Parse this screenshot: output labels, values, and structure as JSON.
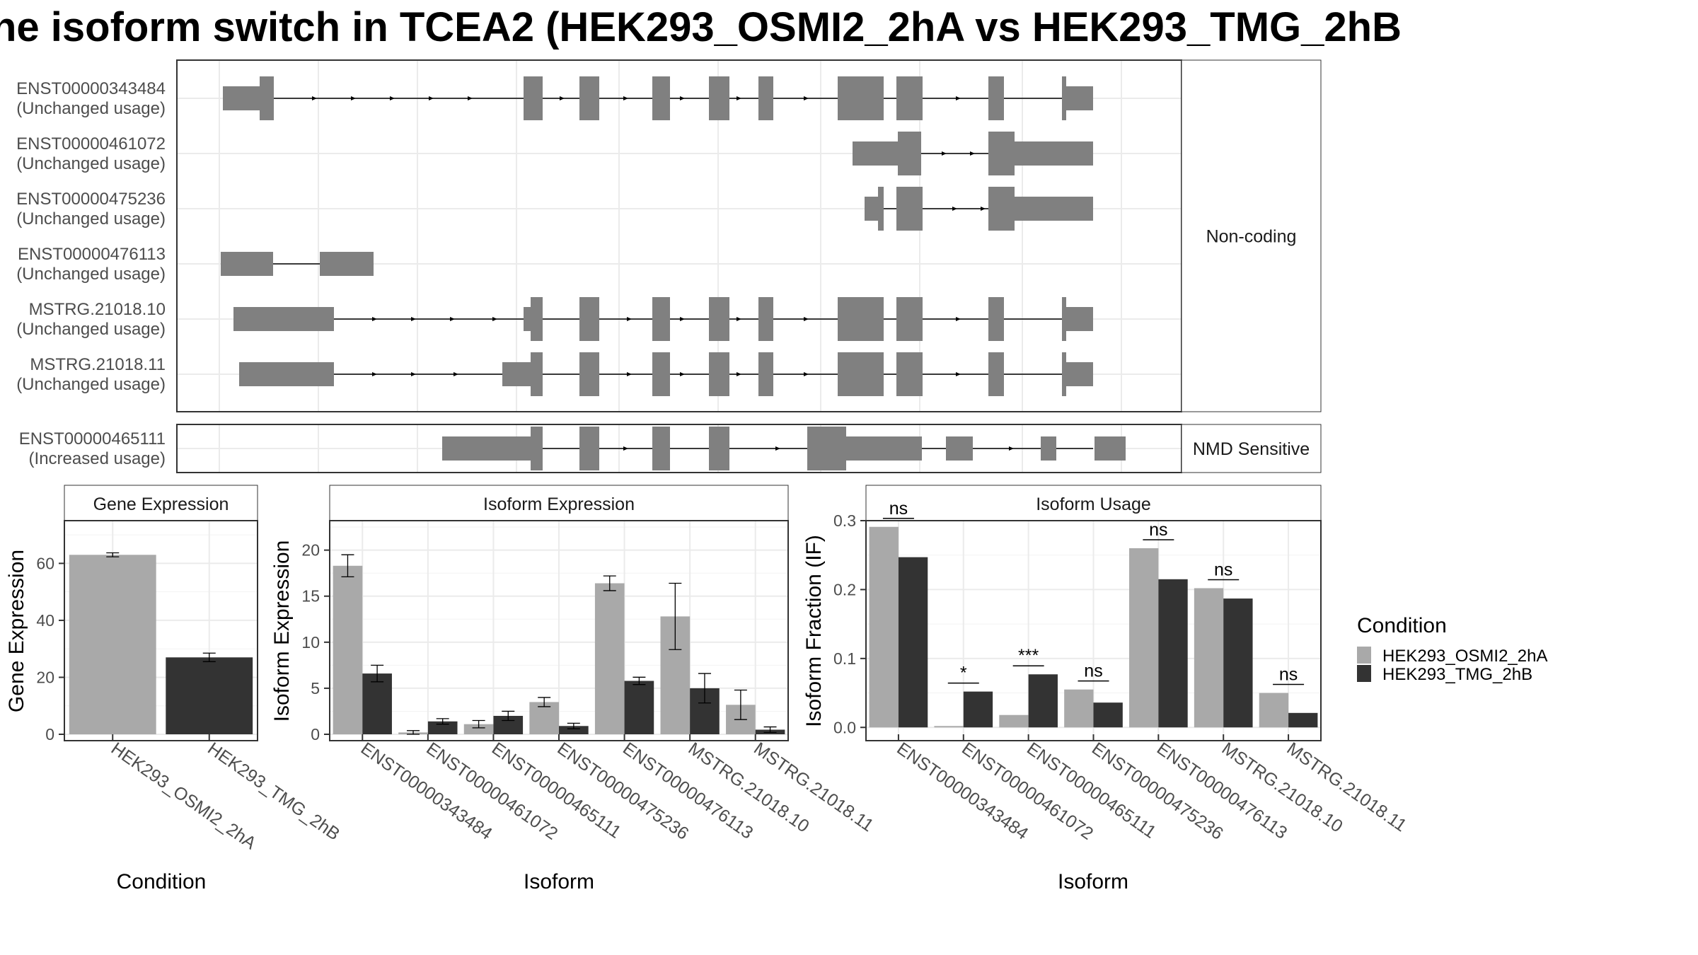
{
  "title": "he isoform switch in TCEA2 (HEK293_OSMI2_2hA vs HEK293_TMG_2hB",
  "colors": {
    "cond1": "#a9a9a9",
    "cond2": "#333333",
    "exon": "#808080",
    "strip": "#ffffff",
    "grid": "#ebebeb"
  },
  "structure": {
    "groups": [
      {
        "label": "Non-coding",
        "rows": [
          {
            "id": "ENST00000343484",
            "status": "(Unchanged usage)",
            "intron": [
              65,
              1295
            ],
            "exons": [
              [
                65,
                117,
                "n"
              ],
              [
                117,
                137,
                "w"
              ],
              [
                490,
                517,
                "w"
              ],
              [
                569,
                597,
                "w"
              ],
              [
                672,
                697,
                "w"
              ],
              [
                752,
                781,
                "w"
              ],
              [
                822,
                843,
                "w"
              ],
              [
                934,
                999,
                "w"
              ],
              [
                1017,
                1054,
                "w"
              ],
              [
                1147,
                1169,
                "w"
              ],
              [
                1251,
                1257,
                "w"
              ],
              [
                1257,
                1295,
                "n"
              ]
            ],
            "arrows": [
              195,
              250,
              305,
              360,
              415,
              545,
              635,
              715,
              795,
              890,
              970,
              1105
            ]
          },
          {
            "id": "ENST00000461072",
            "status": "(Unchanged usage)",
            "intron": [
              955,
              1295
            ],
            "exons": [
              [
                955,
                1019,
                "n"
              ],
              [
                1019,
                1052,
                "w"
              ],
              [
                1147,
                1184,
                "w"
              ],
              [
                1184,
                1295,
                "n"
              ]
            ],
            "arrows": [
              1085,
              1125
            ]
          },
          {
            "id": "ENST00000475236",
            "status": "(Unchanged usage)",
            "intron": [
              972,
              1295
            ],
            "exons": [
              [
                972,
                991,
                "n"
              ],
              [
                991,
                999,
                "w"
              ],
              [
                1017,
                1054,
                "w"
              ],
              [
                1147,
                1184,
                "w"
              ],
              [
                1184,
                1295,
                "n"
              ]
            ],
            "arrows": [
              1100,
              1140
            ]
          },
          {
            "id": "ENST00000476113",
            "status": "(Unchanged usage)",
            "intron": [
              62,
              278
            ],
            "exons": [
              [
                62,
                136,
                "n"
              ],
              [
                202,
                278,
                "n"
              ]
            ],
            "arrows": []
          },
          {
            "id": "MSTRG.21018.10",
            "status": "(Unchanged usage)",
            "intron": [
              80,
              1295
            ],
            "exons": [
              [
                80,
                222,
                "n"
              ],
              [
                490,
                500,
                "n"
              ],
              [
                500,
                517,
                "w"
              ],
              [
                569,
                597,
                "w"
              ],
              [
                672,
                697,
                "w"
              ],
              [
                752,
                781,
                "w"
              ],
              [
                822,
                843,
                "w"
              ],
              [
                934,
                999,
                "w"
              ],
              [
                1017,
                1054,
                "w"
              ],
              [
                1147,
                1169,
                "w"
              ],
              [
                1251,
                1257,
                "w"
              ],
              [
                1257,
                1295,
                "n"
              ]
            ],
            "arrows": [
              280,
              335,
              390,
              450,
              640,
              715,
              795,
              890,
              970,
              1105
            ]
          },
          {
            "id": "MSTRG.21018.11",
            "status": "(Unchanged usage)",
            "intron": [
              88,
              1295
            ],
            "exons": [
              [
                88,
                222,
                "n"
              ],
              [
                460,
                500,
                "n"
              ],
              [
                500,
                517,
                "w"
              ],
              [
                569,
                597,
                "w"
              ],
              [
                672,
                697,
                "w"
              ],
              [
                752,
                781,
                "w"
              ],
              [
                822,
                843,
                "w"
              ],
              [
                934,
                999,
                "w"
              ],
              [
                1017,
                1054,
                "w"
              ],
              [
                1147,
                1169,
                "w"
              ],
              [
                1251,
                1257,
                "w"
              ],
              [
                1257,
                1295,
                "n"
              ]
            ],
            "arrows": [
              280,
              335,
              395,
              640,
              715,
              795,
              890,
              970,
              1105
            ]
          }
        ]
      },
      {
        "label": "NMD Sensitive",
        "rows": [
          {
            "id": "ENST00000465111",
            "status": "(Increased usage)",
            "intron": [
              375,
              1295
            ],
            "exons": [
              [
                375,
                500,
                "n"
              ],
              [
                500,
                517,
                "w"
              ],
              [
                569,
                597,
                "w"
              ],
              [
                672,
                697,
                "w"
              ],
              [
                752,
                781,
                "w"
              ],
              [
                891,
                946,
                "w"
              ],
              [
                946,
                1053,
                "n"
              ],
              [
                1087,
                1125,
                "n"
              ],
              [
                1221,
                1243,
                "n"
              ],
              [
                1297,
                1341,
                "n"
              ]
            ],
            "arrows": [
              635,
              760,
              850,
              1180
            ]
          }
        ]
      }
    ]
  },
  "chart_data": [
    {
      "type": "bar",
      "title": "Gene Expression",
      "xlabel": "Condition",
      "ylabel": "Gene Expression",
      "ylim": [
        0,
        75
      ],
      "yticks": [
        0,
        20,
        40,
        60
      ],
      "categories": [
        "HEK293_OSMI2_2hA",
        "HEK293_TMG_2hB"
      ],
      "values": [
        63.0,
        27.0
      ],
      "errors": [
        0.7,
        1.5
      ]
    },
    {
      "type": "bar",
      "title": "Isoform Expression",
      "xlabel": "Isoform",
      "ylabel": "Isoform Expression",
      "ylim": [
        0,
        23.2
      ],
      "yticks": [
        0,
        5,
        10,
        15,
        20
      ],
      "categories": [
        "ENST00000343484",
        "ENST00000461072",
        "ENST00000465111",
        "ENST00000475236",
        "ENST00000476113",
        "MSTRG.21018.10",
        "MSTRG.21018.11"
      ],
      "series": [
        {
          "name": "HEK293_OSMI2_2hA",
          "values": [
            18.3,
            0.2,
            1.1,
            3.5,
            16.4,
            12.8,
            3.2
          ],
          "errors": [
            1.2,
            0.2,
            0.4,
            0.5,
            0.8,
            3.6,
            1.6
          ]
        },
        {
          "name": "HEK293_TMG_2hB",
          "values": [
            6.6,
            1.4,
            2.0,
            0.9,
            5.8,
            5.0,
            0.5
          ],
          "errors": [
            0.9,
            0.3,
            0.5,
            0.3,
            0.4,
            1.6,
            0.3
          ]
        }
      ]
    },
    {
      "type": "bar",
      "title": "Isoform Usage",
      "xlabel": "Isoform",
      "ylabel": "Isoform Fraction (IF)",
      "ylim": [
        -0.01,
        0.3
      ],
      "yticks": [
        0.0,
        0.1,
        0.2,
        0.3
      ],
      "ytick_labels": [
        "0.0",
        "0.1",
        "0.2",
        "0.3"
      ],
      "categories": [
        "ENST00000343484",
        "ENST00000461072",
        "ENST00000465111",
        "ENST00000475236",
        "ENST00000476113",
        "MSTRG.21018.10",
        "MSTRG.21018.11"
      ],
      "series": [
        {
          "name": "HEK293_OSMI2_2hA",
          "values": [
            0.291,
            0.002,
            0.018,
            0.055,
            0.26,
            0.202,
            0.05
          ]
        },
        {
          "name": "HEK293_TMG_2hB",
          "values": [
            0.247,
            0.052,
            0.077,
            0.036,
            0.215,
            0.187,
            0.021
          ]
        }
      ],
      "significance": [
        "ns",
        "*",
        "***",
        "ns",
        "ns",
        "ns",
        "ns"
      ]
    }
  ],
  "legend": {
    "title": "Condition",
    "items": [
      "HEK293_OSMI2_2hA",
      "HEK293_TMG_2hB"
    ]
  }
}
